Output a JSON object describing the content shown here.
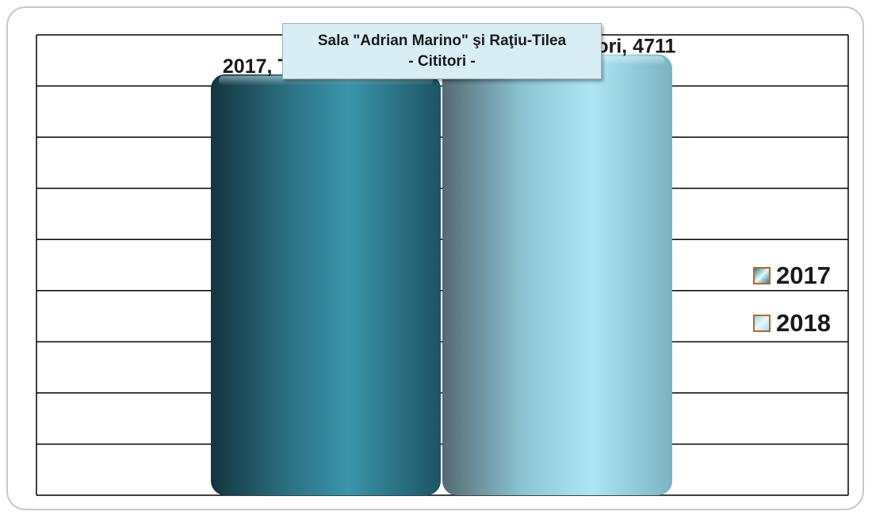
{
  "chart_data": {
    "type": "bar",
    "title": "Sala \"Adrian Marino\" şi Raţiu-Tilea",
    "subtitle": "- Cititori -",
    "categories": [
      "Total cititori"
    ],
    "series": [
      {
        "name": "2017",
        "values": [
          4620
        ],
        "color": "#2f8297"
      },
      {
        "name": "2018",
        "values": [
          4711
        ],
        "color": "#9bdbed"
      }
    ],
    "data_labels": [
      "2017, Total cititori, 4620",
      "2018, Total cititori, 4711"
    ],
    "ylim": [
      2700,
      4800
    ],
    "grid": true,
    "legend_position": "right",
    "legend": [
      "2017",
      "2018"
    ]
  }
}
